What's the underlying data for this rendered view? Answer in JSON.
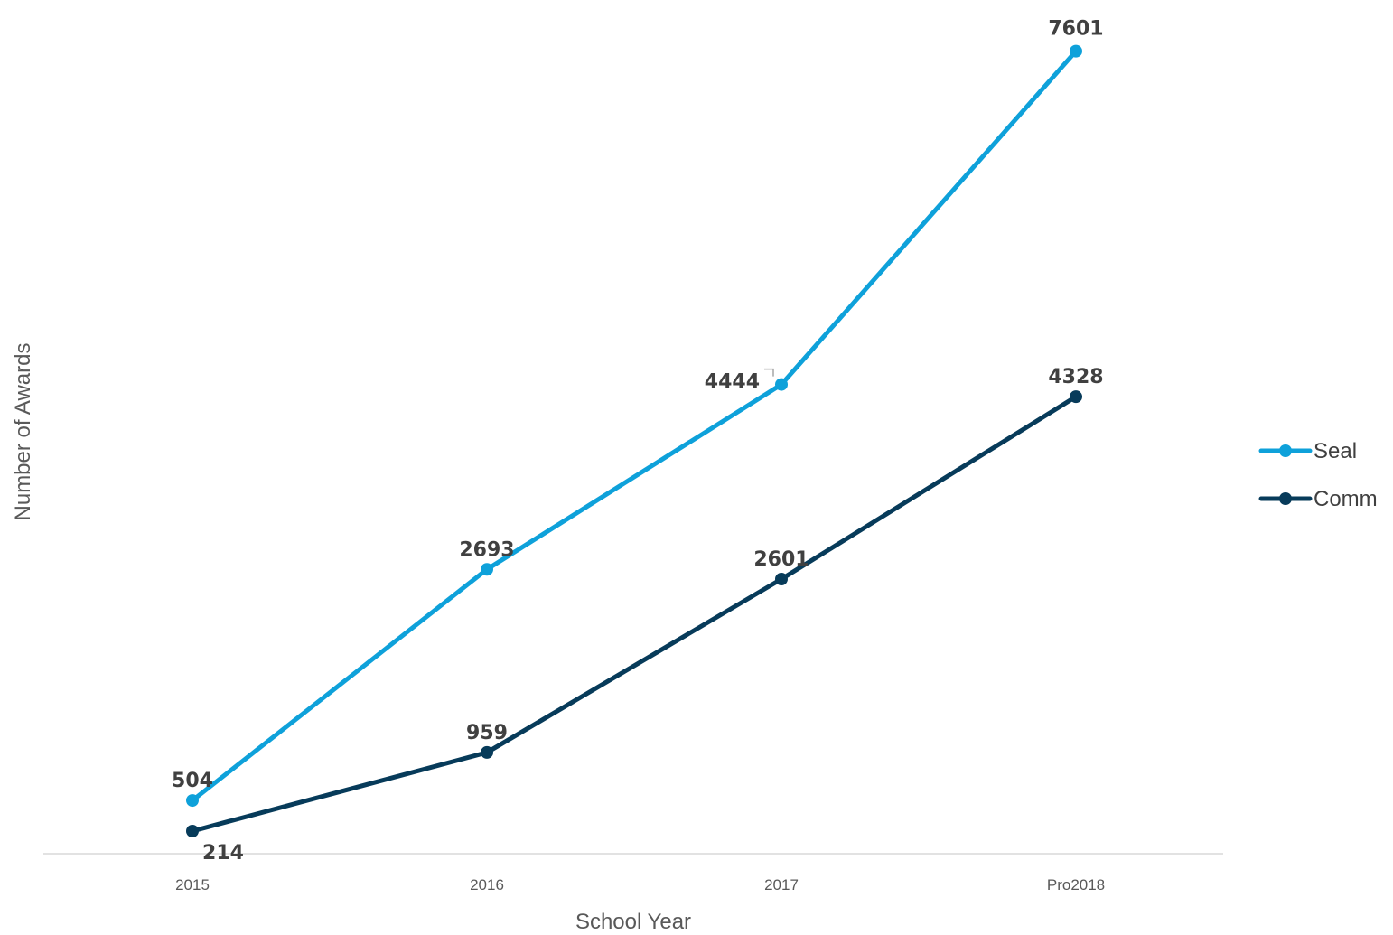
{
  "chart_data": {
    "type": "line",
    "categories": [
      "2015",
      "2016",
      "2017",
      "Pro2018"
    ],
    "series": [
      {
        "name": "Seal",
        "values": [
          504,
          2693,
          4444,
          7601
        ],
        "color": "#0EA1DA"
      },
      {
        "name": "Comm",
        "values": [
          214,
          959,
          2601,
          4328
        ],
        "color": "#073B5A"
      }
    ],
    "xlabel": "School Year",
    "ylabel": "Number of Awards",
    "ylim": [
      0,
      8000
    ],
    "grid": false,
    "legend": "right",
    "data_labels": true
  }
}
